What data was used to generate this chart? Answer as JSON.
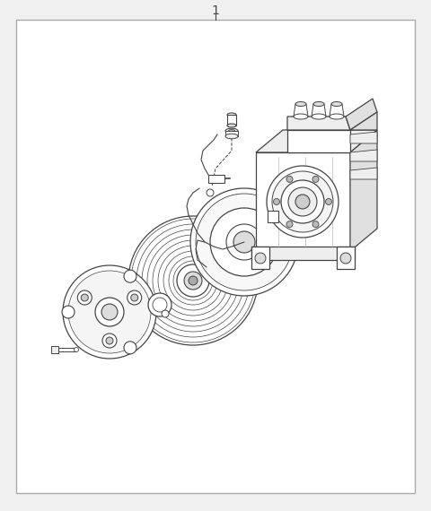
{
  "title": "1",
  "bg_color": "#f0f0f0",
  "border_color": "#aaaaaa",
  "line_color": "#444444",
  "figsize": [
    4.8,
    5.7
  ],
  "dpi": 100,
  "title_fontsize": 10
}
